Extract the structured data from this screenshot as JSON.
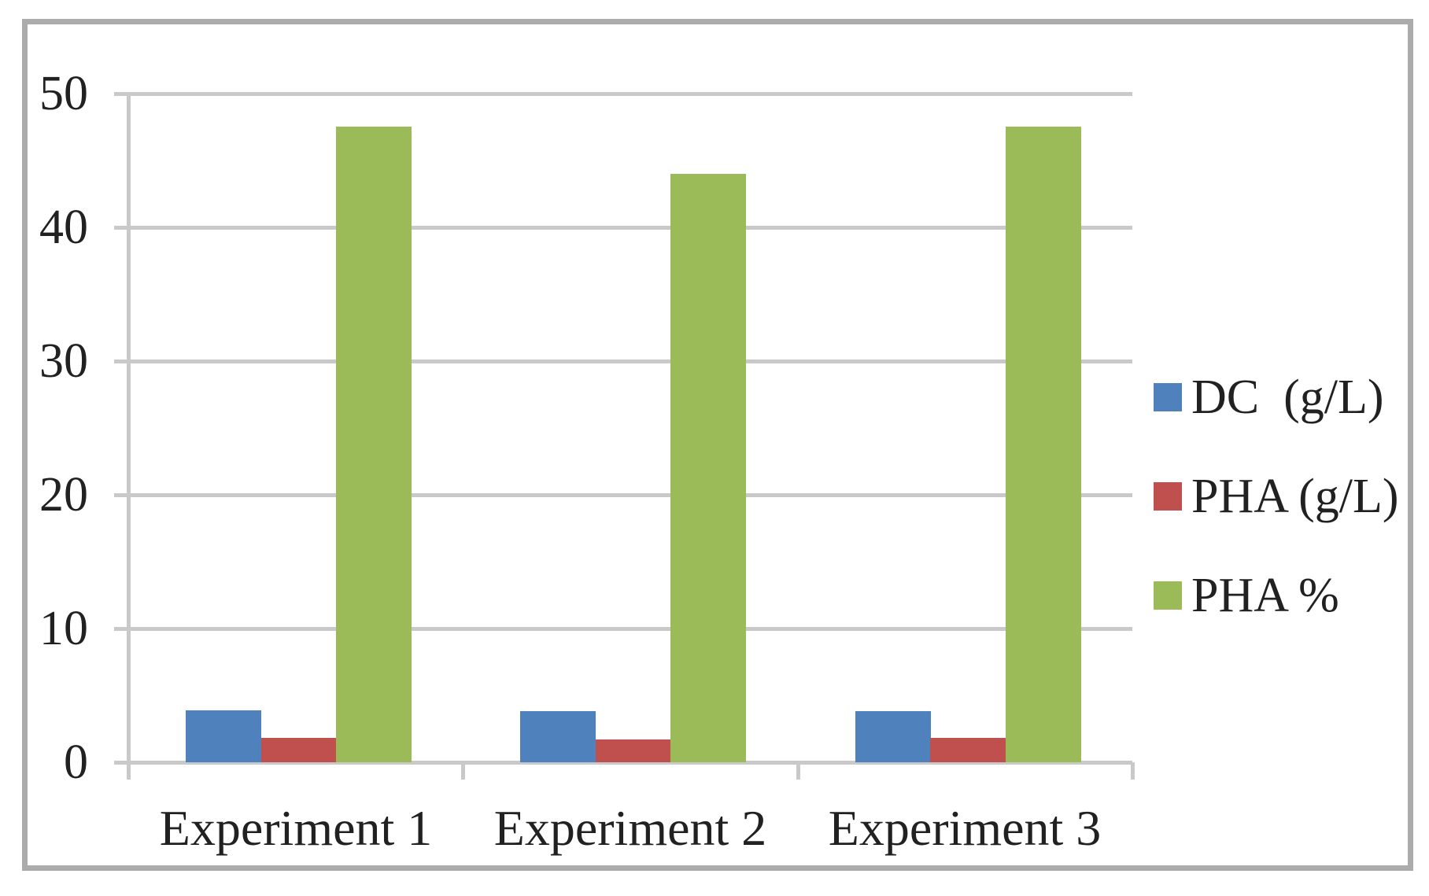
{
  "chart_data": {
    "type": "bar",
    "categories": [
      "Experiment 1",
      "Experiment 2",
      "Experiment 3"
    ],
    "series": [
      {
        "name": "DC  (g/L)",
        "key": "dc-g-l",
        "color": "#4F81BD",
        "values": [
          3.9,
          3.8,
          3.8
        ]
      },
      {
        "name": "PHA (g/L)",
        "key": "pha-g-l",
        "color": "#C0504D",
        "values": [
          1.8,
          1.7,
          1.8
        ]
      },
      {
        "name": "PHA %",
        "key": "pha-pct",
        "color": "#9BBB59",
        "values": [
          47.5,
          44.0,
          47.5
        ]
      }
    ],
    "title": "",
    "xlabel": "",
    "ylabel": "",
    "ylim": [
      0,
      50
    ],
    "yticks": [
      0,
      10,
      20,
      30,
      40,
      50
    ],
    "ytick_labels": [
      "0",
      "10",
      "20",
      "30",
      "40",
      "50"
    ],
    "grid": true,
    "legend_position": "right"
  },
  "colors": {
    "grid": "#C9C9C9",
    "axis": "#C9C9C9",
    "frame_border": "#ACACAC",
    "text": "#212121",
    "background": "#FFFFFF"
  }
}
